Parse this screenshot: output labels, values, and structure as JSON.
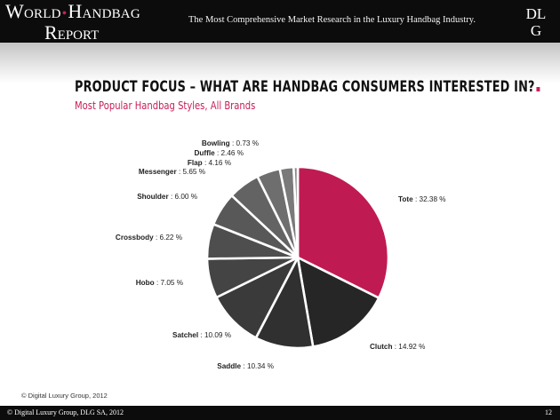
{
  "header": {
    "brand_line1_a": "World",
    "brand_line1_b": "Handbag",
    "brand_line2": "Report",
    "tagline": "The Most Comprehensive Market Research in the Luxury Handbag Industry.",
    "logo_line1": "DL",
    "logo_line2_letter": "G",
    "logo_line2_dot": "."
  },
  "slide": {
    "title": "PRODUCT FOCUS – WHAT ARE HANDBAG CONSUMERS INTERESTED IN?",
    "subtitle": "Most Popular Handbag Styles, All Brands"
  },
  "chart_data": {
    "type": "pie",
    "categories": [
      "Tote",
      "Clutch",
      "Saddle",
      "Satchel",
      "Hobo",
      "Crossbody",
      "Shoulder",
      "Messenger",
      "Flap",
      "Duffle",
      "Bowling"
    ],
    "values": [
      32.38,
      14.92,
      10.34,
      10.09,
      7.05,
      6.22,
      6.0,
      5.65,
      4.16,
      2.46,
      0.73
    ],
    "labels": [
      "32.38 %",
      "14.92 %",
      "10.34 %",
      "10.09 %",
      "7.05 %",
      "6.22 %",
      "6.00 %",
      "5.65 %",
      "4.16 %",
      "2.46 %",
      "0.73 %"
    ],
    "colors": [
      "#c01a53",
      "#262626",
      "#303030",
      "#3a3a3a",
      "#444444",
      "#4e4e4e",
      "#585858",
      "#636363",
      "#6e6e6e",
      "#7a7a7a",
      "#888888"
    ],
    "start_angle": "12 o'clock",
    "direction": "clockwise",
    "legend": "none (labels beside slices)"
  },
  "footer": {
    "copyright": "© Digital Luxury Group, 2012",
    "text": "© Digital Luxury Group, DLG SA, 2012",
    "page_number": "12"
  }
}
